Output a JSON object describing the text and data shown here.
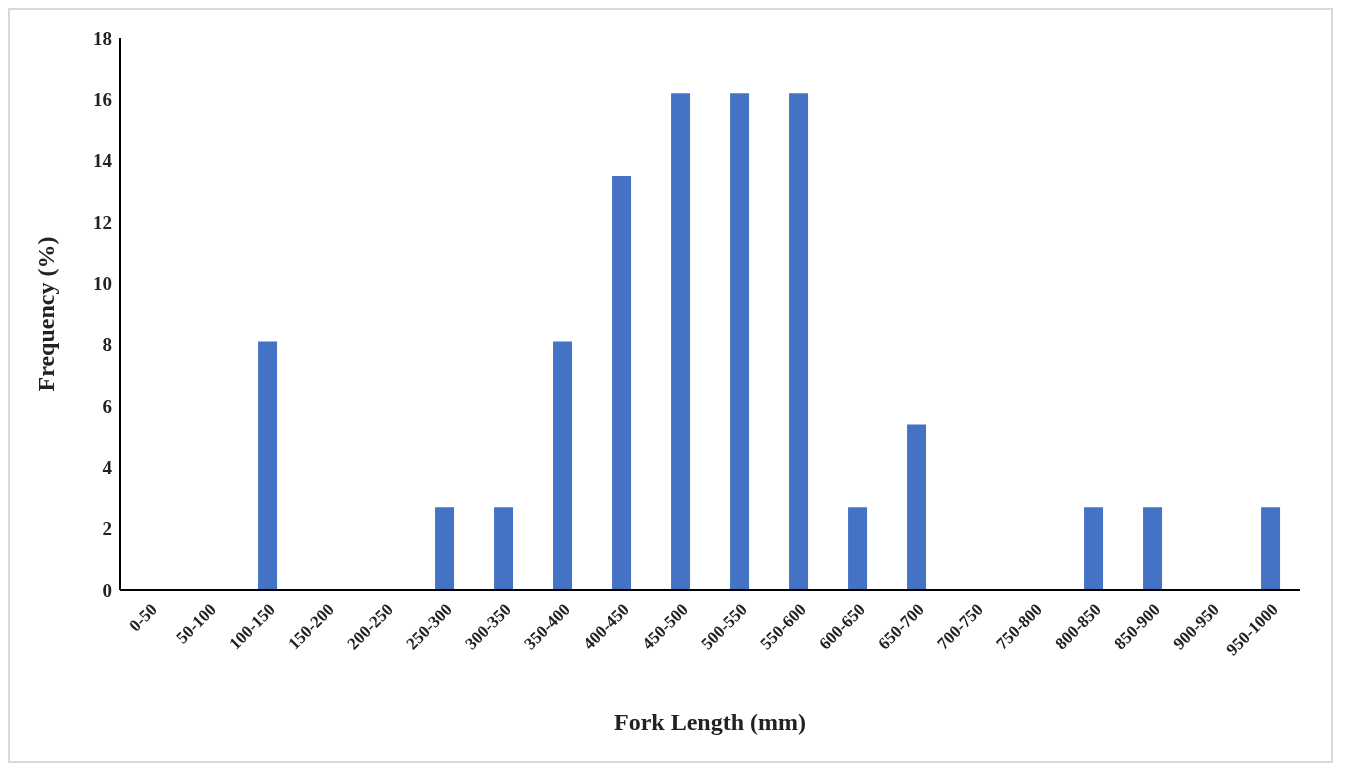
{
  "chart_data": {
    "type": "bar",
    "xlabel": "Fork Length (mm)",
    "ylabel": "Frequency (%)",
    "categories": [
      "0-50",
      "50-100",
      "100-150",
      "150-200",
      "200-250",
      "250-300",
      "300-350",
      "350-400",
      "400-450",
      "450-500",
      "500-550",
      "550-600",
      "600-650",
      "650-700",
      "700-750",
      "750-800",
      "800-850",
      "850-900",
      "900-950",
      "950-1000"
    ],
    "values": [
      0,
      0,
      8.1,
      0,
      0,
      2.7,
      2.7,
      8.1,
      13.5,
      16.2,
      16.2,
      16.2,
      2.7,
      5.4,
      0,
      0,
      2.7,
      2.7,
      0,
      2.7
    ],
    "color": "#4472c4",
    "ylim": [
      0,
      18
    ],
    "yticks": [
      0,
      2,
      4,
      6,
      8,
      10,
      12,
      14,
      16,
      18
    ],
    "grid": false,
    "legend": false
  }
}
